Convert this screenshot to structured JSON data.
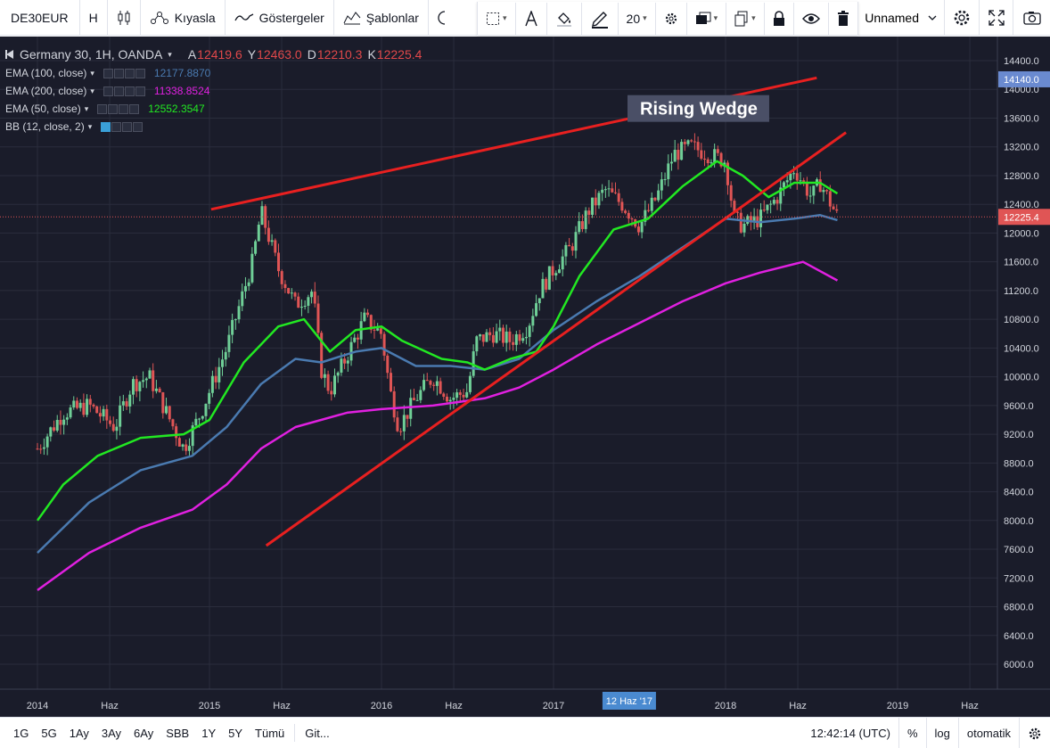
{
  "toolbar": {
    "symbol": "DE30EUR",
    "interval": "H",
    "compare_label": "Kıyasla",
    "indicators_label": "Göstergeler",
    "templates_label": "Şablonlar"
  },
  "drawing_toolbar": {
    "line_width": "20"
  },
  "layout": {
    "name": "Unnamed"
  },
  "legend": {
    "title": "Germany 30, 1H, OANDA",
    "ohlc": [
      {
        "key": "A",
        "value": "12419.6"
      },
      {
        "key": "Y",
        "value": "12463.0"
      },
      {
        "key": "D",
        "value": "12210.3"
      },
      {
        "key": "K",
        "value": "12225.4"
      }
    ],
    "indicators": [
      {
        "label": "EMA (100, close)",
        "value": "12177.8870",
        "color": "#4a7ab0"
      },
      {
        "label": "EMA (200, close)",
        "value": "11338.8524",
        "color": "#e020e0"
      },
      {
        "label": "EMA (50, close)",
        "value": "12552.3547",
        "color": "#22e822"
      },
      {
        "label": "BB (12, close, 2)",
        "value": "",
        "color": "#3aa0d8"
      }
    ]
  },
  "annotation": {
    "text": "Rising Wedge"
  },
  "price_axis": {
    "ticks": [
      "14400.0",
      "14000.0",
      "13600.0",
      "13200.0",
      "12800.0",
      "12400.0",
      "12000.0",
      "11600.0",
      "11200.0",
      "10800.0",
      "10400.0",
      "10000.0",
      "9600.0",
      "9200.0",
      "8800.0",
      "8400.0",
      "8000.0",
      "7600.0",
      "7200.0",
      "6800.0",
      "6400.0",
      "6000.0"
    ],
    "tick_values": [
      14400,
      14000,
      13600,
      13200,
      12800,
      12400,
      12000,
      11600,
      11200,
      10800,
      10400,
      10000,
      9600,
      9200,
      8800,
      8400,
      8000,
      7600,
      7200,
      6800,
      6400,
      6000
    ],
    "high_label": "14140.0",
    "high_value": 14140,
    "last_label": "12225.4",
    "last_value": 12225.4
  },
  "time_axis": {
    "labels": [
      "2014",
      "Haz",
      "2015",
      "Haz",
      "2016",
      "Haz",
      "2017",
      "2018",
      "Haz",
      "2019",
      "Haz"
    ],
    "cursor_label": "12 Haz '17"
  },
  "colors": {
    "background": "#1a1c2a",
    "grid": "#2a2d3c",
    "up": "#6fcf97",
    "down": "#e05555",
    "trendline": "#e82020",
    "ema50": "#22e822",
    "ema100": "#4a7ab0",
    "ema200": "#e020e0"
  },
  "chart_data": {
    "type": "candlestick",
    "ylim": [
      5800,
      14650
    ],
    "ema50": [
      [
        2014.0,
        8000
      ],
      [
        2014.15,
        8500
      ],
      [
        2014.35,
        8900
      ],
      [
        2014.6,
        9150
      ],
      [
        2014.85,
        9200
      ],
      [
        2015.0,
        9400
      ],
      [
        2015.2,
        10200
      ],
      [
        2015.4,
        10700
      ],
      [
        2015.55,
        10800
      ],
      [
        2015.7,
        10350
      ],
      [
        2015.85,
        10650
      ],
      [
        2016.0,
        10700
      ],
      [
        2016.12,
        10500
      ],
      [
        2016.35,
        10250
      ],
      [
        2016.5,
        10200
      ],
      [
        2016.6,
        10100
      ],
      [
        2016.75,
        10250
      ],
      [
        2016.9,
        10350
      ],
      [
        2017.0,
        10700
      ],
      [
        2017.15,
        11400
      ],
      [
        2017.35,
        12050
      ],
      [
        2017.55,
        12200
      ],
      [
        2017.75,
        12650
      ],
      [
        2017.95,
        13000
      ],
      [
        2018.1,
        12800
      ],
      [
        2018.25,
        12500
      ],
      [
        2018.4,
        12700
      ],
      [
        2018.55,
        12700
      ],
      [
        2018.65,
        12550
      ]
    ],
    "ema100": [
      [
        2014.0,
        7550
      ],
      [
        2014.3,
        8250
      ],
      [
        2014.6,
        8700
      ],
      [
        2014.9,
        8900
      ],
      [
        2015.1,
        9300
      ],
      [
        2015.3,
        9900
      ],
      [
        2015.5,
        10250
      ],
      [
        2015.65,
        10200
      ],
      [
        2015.85,
        10350
      ],
      [
        2016.0,
        10400
      ],
      [
        2016.2,
        10150
      ],
      [
        2016.4,
        10150
      ],
      [
        2016.6,
        10100
      ],
      [
        2016.8,
        10250
      ],
      [
        2017.0,
        10650
      ],
      [
        2017.25,
        11050
      ],
      [
        2017.5,
        11400
      ],
      [
        2017.75,
        11800
      ],
      [
        2018.0,
        12200
      ],
      [
        2018.2,
        12150
      ],
      [
        2018.4,
        12200
      ],
      [
        2018.55,
        12250
      ],
      [
        2018.65,
        12180
      ]
    ],
    "ema200": [
      [
        2014.0,
        7030
      ],
      [
        2014.3,
        7550
      ],
      [
        2014.6,
        7900
      ],
      [
        2014.9,
        8150
      ],
      [
        2015.1,
        8500
      ],
      [
        2015.3,
        9000
      ],
      [
        2015.5,
        9300
      ],
      [
        2015.8,
        9500
      ],
      [
        2016.0,
        9550
      ],
      [
        2016.3,
        9600
      ],
      [
        2016.6,
        9700
      ],
      [
        2016.8,
        9850
      ],
      [
        2017.0,
        10100
      ],
      [
        2017.25,
        10450
      ],
      [
        2017.5,
        10750
      ],
      [
        2017.75,
        11050
      ],
      [
        2018.0,
        11300
      ],
      [
        2018.2,
        11450
      ],
      [
        2018.45,
        11600
      ],
      [
        2018.65,
        11340
      ]
    ],
    "trendline_upper": [
      [
        2015.01,
        12330
      ],
      [
        2018.53,
        14160
      ]
    ],
    "trendline_lower": [
      [
        2015.33,
        7650
      ],
      [
        2018.7,
        13400
      ]
    ],
    "candles_keypoints": [
      [
        2014.0,
        9000
      ],
      [
        2014.15,
        9500
      ],
      [
        2014.3,
        9600
      ],
      [
        2014.45,
        9300
      ],
      [
        2014.55,
        9900
      ],
      [
        2014.65,
        10000
      ],
      [
        2014.75,
        9500
      ],
      [
        2014.85,
        9000
      ],
      [
        2014.95,
        9500
      ],
      [
        2015.0,
        9800
      ],
      [
        2015.1,
        10400
      ],
      [
        2015.25,
        11600
      ],
      [
        2015.3,
        12300
      ],
      [
        2015.4,
        11500
      ],
      [
        2015.5,
        11000
      ],
      [
        2015.6,
        11200
      ],
      [
        2015.65,
        10100
      ],
      [
        2015.7,
        9800
      ],
      [
        2015.8,
        10300
      ],
      [
        2015.9,
        10800
      ],
      [
        2016.0,
        10600
      ],
      [
        2016.05,
        9800
      ],
      [
        2016.1,
        9300
      ],
      [
        2016.2,
        9700
      ],
      [
        2016.3,
        10000
      ],
      [
        2016.4,
        9700
      ],
      [
        2016.5,
        9800
      ],
      [
        2016.55,
        10500
      ],
      [
        2016.65,
        10600
      ],
      [
        2016.75,
        10500
      ],
      [
        2016.85,
        10700
      ],
      [
        2016.92,
        11200
      ],
      [
        2017.0,
        11500
      ],
      [
        2017.1,
        11800
      ],
      [
        2017.2,
        12300
      ],
      [
        2017.3,
        12600
      ],
      [
        2017.4,
        12400
      ],
      [
        2017.5,
        12100
      ],
      [
        2017.6,
        12500
      ],
      [
        2017.7,
        13100
      ],
      [
        2017.8,
        13200
      ],
      [
        2017.9,
        13100
      ],
      [
        2018.0,
        13000
      ],
      [
        2018.05,
        12200
      ],
      [
        2018.1,
        12100
      ],
      [
        2018.2,
        12200
      ],
      [
        2018.3,
        12500
      ],
      [
        2018.4,
        12900
      ],
      [
        2018.5,
        12500
      ],
      [
        2018.55,
        12700
      ],
      [
        2018.65,
        12225
      ]
    ]
  },
  "bottombar": {
    "ranges": [
      "1G",
      "5G",
      "1Ay",
      "3Ay",
      "6Ay",
      "SBB",
      "1Y",
      "5Y",
      "Tümü"
    ],
    "goto_label": "Git...",
    "clock": "12:42:14 (UTC)",
    "percent_label": "%",
    "log_label": "log",
    "auto_label": "otomatik"
  }
}
